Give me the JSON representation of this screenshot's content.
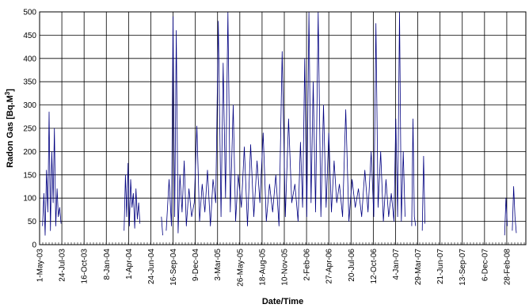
{
  "chart_data": {
    "type": "line",
    "title": "",
    "xlabel": "Date/Time",
    "ylabel_prefix": "Radon Gas [Bq.M",
    "ylabel_sup": "3",
    "ylabel_suffix": "]",
    "ylim": [
      0,
      500
    ],
    "yticks": [
      0,
      50,
      100,
      150,
      200,
      250,
      300,
      350,
      400,
      450,
      500
    ],
    "xlim": [
      "2003-05-01",
      "2008-05-10"
    ],
    "xticks": [
      {
        "label": "1-May-03",
        "date": "2003-05-01"
      },
      {
        "label": "24-Jul-03",
        "date": "2003-07-24"
      },
      {
        "label": "16-Oct-03",
        "date": "2003-10-16"
      },
      {
        "label": "8-Jan-04",
        "date": "2004-01-08"
      },
      {
        "label": "1-Apr-04",
        "date": "2004-04-01"
      },
      {
        "label": "24-Jun-04",
        "date": "2004-06-24"
      },
      {
        "label": "16-Sep-04",
        "date": "2004-09-16"
      },
      {
        "label": "9-Dec-04",
        "date": "2004-12-09"
      },
      {
        "label": "3-Mar-05",
        "date": "2005-03-03"
      },
      {
        "label": "26-May-05",
        "date": "2005-05-26"
      },
      {
        "label": "18-Aug-05",
        "date": "2005-08-18"
      },
      {
        "label": "10-Nov-05",
        "date": "2005-11-10"
      },
      {
        "label": "2-Feb-06",
        "date": "2006-02-02"
      },
      {
        "label": "27-Apr-06",
        "date": "2006-04-27"
      },
      {
        "label": "20-Jul-06",
        "date": "2006-07-20"
      },
      {
        "label": "12-Oct-06",
        "date": "2006-10-12"
      },
      {
        "label": "4-Jan-07",
        "date": "2007-01-04"
      },
      {
        "label": "29-Mar-07",
        "date": "2007-03-29"
      },
      {
        "label": "21-Jun-07",
        "date": "2007-06-21"
      },
      {
        "label": "13-Sep-07",
        "date": "2007-09-13"
      },
      {
        "label": "6-Dec-07",
        "date": "2007-12-06"
      },
      {
        "label": "28-Feb-08",
        "date": "2008-02-28"
      }
    ],
    "grid": true,
    "series_color": "#000080",
    "series": [
      {
        "segments": [
          {
            "x": [
              "2003-05-12",
              "2003-05-17",
              "2003-05-22",
              "2003-05-27",
              "2003-06-01",
              "2003-06-06",
              "2003-06-11",
              "2003-06-16",
              "2003-06-21",
              "2003-06-26",
              "2003-07-01",
              "2003-07-06",
              "2003-07-11",
              "2003-07-16",
              "2003-07-21"
            ],
            "y": [
              40,
              110,
              20,
              160,
              70,
              285,
              30,
              200,
              90,
              250,
              40,
              120,
              60,
              80,
              45
            ]
          },
          {
            "x": [
              "2004-03-15",
              "2004-03-20",
              "2004-03-25",
              "2004-03-30",
              "2004-04-04",
              "2004-04-09",
              "2004-04-14",
              "2004-04-19",
              "2004-04-24",
              "2004-04-29",
              "2004-05-04",
              "2004-05-09",
              "2004-05-14"
            ],
            "y": [
              30,
              150,
              60,
              175,
              40,
              140,
              80,
              110,
              35,
              120,
              55,
              90,
              45
            ]
          },
          {
            "x": [
              "2004-08-03",
              "2004-08-08"
            ],
            "y": [
              60,
              20
            ]
          },
          {
            "x": [
              "2004-08-21",
              "2004-09-01",
              "2004-09-10",
              "2004-09-16",
              "2004-09-22",
              "2004-09-28",
              "2004-10-05",
              "2004-10-12",
              "2004-10-20",
              "2004-10-28",
              "2004-11-05",
              "2004-11-15",
              "2004-11-25",
              "2004-12-05",
              "2004-12-15",
              "2004-12-25",
              "2005-01-04",
              "2005-01-14",
              "2005-01-24",
              "2005-02-04",
              "2005-02-14",
              "2005-02-24",
              "2005-03-06",
              "2005-03-16",
              "2005-03-24",
              "2005-04-02",
              "2005-04-11",
              "2005-04-20",
              "2005-05-01",
              "2005-05-10",
              "2005-05-20",
              "2005-06-01",
              "2005-06-12",
              "2005-06-24",
              "2005-07-06",
              "2005-07-18",
              "2005-07-30",
              "2005-08-10",
              "2005-08-22",
              "2005-09-03",
              "2005-09-15",
              "2005-09-27",
              "2005-10-09",
              "2005-10-21",
              "2005-11-02",
              "2005-11-14",
              "2005-11-26",
              "2005-12-08",
              "2005-12-20",
              "2006-01-01",
              "2006-01-10",
              "2006-01-18",
              "2006-01-26",
              "2006-02-03",
              "2006-02-11",
              "2006-02-19",
              "2006-02-27",
              "2006-03-08",
              "2006-03-18",
              "2006-03-28",
              "2006-04-07",
              "2006-04-17",
              "2006-04-27",
              "2006-05-07",
              "2006-05-17",
              "2006-05-27",
              "2006-06-06",
              "2006-06-18",
              "2006-06-30",
              "2006-07-12",
              "2006-07-24",
              "2006-08-05",
              "2006-08-17",
              "2006-08-29",
              "2006-09-10",
              "2006-09-22",
              "2006-10-04",
              "2006-10-14",
              "2006-10-22",
              "2006-10-30",
              "2006-11-09",
              "2006-11-19",
              "2006-11-29",
              "2006-12-09",
              "2006-12-19",
              "2006-12-29",
              "2007-01-05",
              "2007-01-12",
              "2007-01-19",
              "2007-01-26",
              "2007-02-02",
              "2007-02-09"
            ],
            "y": [
              30,
              140,
              40,
              490,
              60,
              460,
              25,
              150,
              70,
              180,
              40,
              120,
              60,
              90,
              255,
              50,
              130,
              70,
              160,
              40,
              140,
              90,
              480,
              60,
              390,
              100,
              500,
              70,
              300,
              50,
              150,
              80,
              210,
              40,
              215,
              60,
              180,
              90,
              240,
              50,
              130,
              70,
              150,
              40,
              415,
              60,
              270,
              90,
              130,
              50,
              220,
              80,
              400,
              60,
              500,
              90,
              350,
              70,
              500,
              60,
              300,
              80,
              240,
              70,
              180,
              90,
              130,
              60,
              290,
              50,
              140,
              80,
              120,
              60,
              160,
              70,
              200,
              60,
              475,
              80,
              200,
              50,
              140,
              60,
              110,
              50,
              270,
              60,
              500,
              50,
              200,
              60
            ]
          },
          {
            "x": [
              "2007-03-06",
              "2007-03-11",
              "2007-03-16",
              "2007-03-21"
            ],
            "y": [
              40,
              270,
              60,
              40
            ]
          },
          {
            "x": [
              "2007-04-15",
              "2007-04-20",
              "2007-04-25"
            ],
            "y": [
              30,
              190,
              45
            ]
          },
          {
            "x": [
              "2008-02-20",
              "2008-02-25",
              "2008-03-01"
            ],
            "y": [
              20,
              100,
              40
            ]
          },
          {
            "x": [
              "2008-03-20",
              "2008-03-25",
              "2008-03-30",
              "2008-04-04"
            ],
            "y": [
              30,
              125,
              60,
              25
            ]
          }
        ]
      }
    ]
  }
}
